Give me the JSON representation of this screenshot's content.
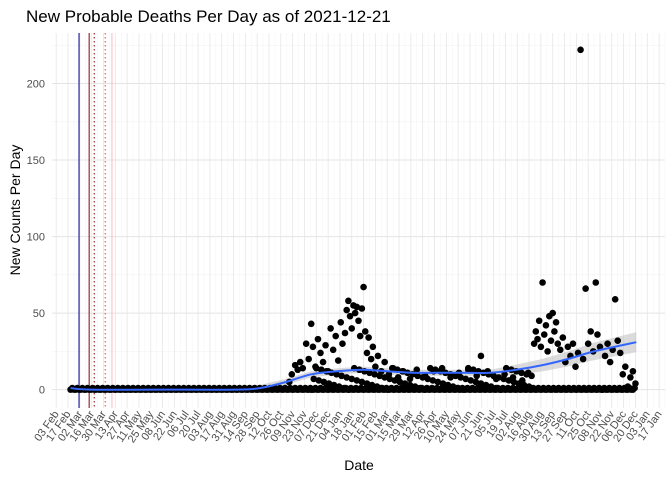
{
  "chart_data": {
    "type": "scatter",
    "title": "New Probable Deaths Per Day as of 2021-12-21",
    "xlabel": "Date",
    "ylabel": "New Counts Per Day",
    "x_type": "date",
    "xlim": [
      "2020-01-29",
      "2022-01-24"
    ],
    "ylim": [
      -12,
      233
    ],
    "y_ticks": [
      0,
      50,
      100,
      150,
      200
    ],
    "grid": true,
    "theme": "minimal",
    "points_color": "#000000",
    "trend_color": "#3366ff",
    "trend_band_color": "#bdbdbd",
    "vlines": [
      {
        "date": "2020-03-01",
        "color": "#00008b",
        "style": "solid"
      },
      {
        "date": "2020-03-13",
        "color": "#8b0000",
        "style": "solid"
      },
      {
        "date": "2020-03-19",
        "color": "#8b0000",
        "style": "dotted"
      },
      {
        "date": "2020-04-01",
        "color": "#ff3333",
        "style": "dotted"
      },
      {
        "date": "2020-04-09",
        "color": "#ffb6c1",
        "style": "solid"
      }
    ],
    "trend": [
      {
        "date": "2020-02-20",
        "value": 1
      },
      {
        "date": "2020-03-15",
        "value": 0
      },
      {
        "date": "2020-06-01",
        "value": 0
      },
      {
        "date": "2020-09-01",
        "value": 0
      },
      {
        "date": "2020-10-01",
        "value": 1
      },
      {
        "date": "2020-11-01",
        "value": 5
      },
      {
        "date": "2020-12-01",
        "value": 10
      },
      {
        "date": "2021-01-01",
        "value": 12
      },
      {
        "date": "2021-02-01",
        "value": 13
      },
      {
        "date": "2021-03-01",
        "value": 12
      },
      {
        "date": "2021-04-01",
        "value": 11
      },
      {
        "date": "2021-05-01",
        "value": 11
      },
      {
        "date": "2021-06-01",
        "value": 11
      },
      {
        "date": "2021-07-01",
        "value": 11
      },
      {
        "date": "2021-08-01",
        "value": 13
      },
      {
        "date": "2021-09-01",
        "value": 16
      },
      {
        "date": "2021-10-01",
        "value": 20
      },
      {
        "date": "2021-11-01",
        "value": 25
      },
      {
        "date": "2021-12-21",
        "value": 31
      }
    ],
    "points": [
      {
        "date": "2020-02-20",
        "value": 0
      },
      {
        "date": "2020-11-05",
        "value": 5
      },
      {
        "date": "2020-11-08",
        "value": 10
      },
      {
        "date": "2020-11-12",
        "value": 16
      },
      {
        "date": "2020-11-15",
        "value": 13
      },
      {
        "date": "2020-11-18",
        "value": 18
      },
      {
        "date": "2020-11-21",
        "value": 14
      },
      {
        "date": "2020-11-25",
        "value": 30
      },
      {
        "date": "2020-11-28",
        "value": 20
      },
      {
        "date": "2020-12-01",
        "value": 43
      },
      {
        "date": "2020-12-03",
        "value": 28
      },
      {
        "date": "2020-12-06",
        "value": 15
      },
      {
        "date": "2020-12-09",
        "value": 33
      },
      {
        "date": "2020-12-12",
        "value": 24
      },
      {
        "date": "2020-12-15",
        "value": 18
      },
      {
        "date": "2020-12-18",
        "value": 29
      },
      {
        "date": "2020-12-21",
        "value": 12
      },
      {
        "date": "2020-12-24",
        "value": 40
      },
      {
        "date": "2020-12-27",
        "value": 26
      },
      {
        "date": "2020-12-30",
        "value": 35
      },
      {
        "date": "2021-01-02",
        "value": 19
      },
      {
        "date": "2021-01-05",
        "value": 44
      },
      {
        "date": "2021-01-07",
        "value": 30
      },
      {
        "date": "2021-01-10",
        "value": 37
      },
      {
        "date": "2021-01-12",
        "value": 52
      },
      {
        "date": "2021-01-14",
        "value": 58
      },
      {
        "date": "2021-01-16",
        "value": 48
      },
      {
        "date": "2021-01-18",
        "value": 40
      },
      {
        "date": "2021-01-20",
        "value": 55
      },
      {
        "date": "2021-01-22",
        "value": 50
      },
      {
        "date": "2021-01-24",
        "value": 54
      },
      {
        "date": "2021-01-26",
        "value": 45
      },
      {
        "date": "2021-01-28",
        "value": 35
      },
      {
        "date": "2021-01-30",
        "value": 53
      },
      {
        "date": "2021-02-01",
        "value": 67
      },
      {
        "date": "2021-02-03",
        "value": 38
      },
      {
        "date": "2021-02-05",
        "value": 24
      },
      {
        "date": "2021-02-07",
        "value": 34
      },
      {
        "date": "2021-02-10",
        "value": 20
      },
      {
        "date": "2021-02-12",
        "value": 28
      },
      {
        "date": "2021-02-15",
        "value": 15
      },
      {
        "date": "2021-02-18",
        "value": 22
      },
      {
        "date": "2021-02-22",
        "value": 12
      },
      {
        "date": "2021-02-26",
        "value": 18
      },
      {
        "date": "2021-03-03",
        "value": 10
      },
      {
        "date": "2021-03-08",
        "value": 14
      },
      {
        "date": "2021-03-14",
        "value": 8
      },
      {
        "date": "2021-03-20",
        "value": 12
      },
      {
        "date": "2021-03-28",
        "value": 7
      },
      {
        "date": "2021-04-05",
        "value": 13
      },
      {
        "date": "2021-04-15",
        "value": 9
      },
      {
        "date": "2021-04-25",
        "value": 12
      },
      {
        "date": "2021-05-05",
        "value": 14
      },
      {
        "date": "2021-05-15",
        "value": 8
      },
      {
        "date": "2021-05-25",
        "value": 11
      },
      {
        "date": "2021-06-05",
        "value": 13
      },
      {
        "date": "2021-06-15",
        "value": 9
      },
      {
        "date": "2021-06-20",
        "value": 22
      },
      {
        "date": "2021-06-28",
        "value": 12
      },
      {
        "date": "2021-07-08",
        "value": 7
      },
      {
        "date": "2021-07-18",
        "value": 10
      },
      {
        "date": "2021-07-28",
        "value": 8
      },
      {
        "date": "2021-08-08",
        "value": 6
      },
      {
        "date": "2021-08-15",
        "value": 11
      },
      {
        "date": "2021-08-22",
        "value": 30
      },
      {
        "date": "2021-08-24",
        "value": 38
      },
      {
        "date": "2021-08-26",
        "value": 33
      },
      {
        "date": "2021-08-28",
        "value": 45
      },
      {
        "date": "2021-08-30",
        "value": 28
      },
      {
        "date": "2021-09-01",
        "value": 70
      },
      {
        "date": "2021-09-03",
        "value": 36
      },
      {
        "date": "2021-09-05",
        "value": 42
      },
      {
        "date": "2021-09-07",
        "value": 25
      },
      {
        "date": "2021-09-09",
        "value": 48
      },
      {
        "date": "2021-09-11",
        "value": 32
      },
      {
        "date": "2021-09-13",
        "value": 50
      },
      {
        "date": "2021-09-15",
        "value": 38
      },
      {
        "date": "2021-09-17",
        "value": 44
      },
      {
        "date": "2021-09-19",
        "value": 30
      },
      {
        "date": "2021-09-22",
        "value": 26
      },
      {
        "date": "2021-09-25",
        "value": 34
      },
      {
        "date": "2021-09-28",
        "value": 18
      },
      {
        "date": "2021-10-01",
        "value": 28
      },
      {
        "date": "2021-10-04",
        "value": 22
      },
      {
        "date": "2021-10-07",
        "value": 30
      },
      {
        "date": "2021-10-10",
        "value": 15
      },
      {
        "date": "2021-10-13",
        "value": 24
      },
      {
        "date": "2021-10-16",
        "value": 222
      },
      {
        "date": "2021-10-19",
        "value": 20
      },
      {
        "date": "2021-10-22",
        "value": 66
      },
      {
        "date": "2021-10-25",
        "value": 30
      },
      {
        "date": "2021-10-28",
        "value": 38
      },
      {
        "date": "2021-10-31",
        "value": 25
      },
      {
        "date": "2021-11-03",
        "value": 70
      },
      {
        "date": "2021-11-05",
        "value": 36
      },
      {
        "date": "2021-11-08",
        "value": 28
      },
      {
        "date": "2021-11-11",
        "value": 0
      },
      {
        "date": "2021-11-14",
        "value": 22
      },
      {
        "date": "2021-11-17",
        "value": 30
      },
      {
        "date": "2021-11-20",
        "value": 18
      },
      {
        "date": "2021-11-23",
        "value": 26
      },
      {
        "date": "2021-11-26",
        "value": 59
      },
      {
        "date": "2021-11-29",
        "value": 32
      },
      {
        "date": "2021-12-02",
        "value": 24
      },
      {
        "date": "2021-12-05",
        "value": 10
      },
      {
        "date": "2021-12-08",
        "value": 15
      },
      {
        "date": "2021-12-11",
        "value": 2
      },
      {
        "date": "2021-12-14",
        "value": 8
      },
      {
        "date": "2021-12-17",
        "value": 12
      },
      {
        "date": "2021-12-20",
        "value": 4
      }
    ],
    "baseline_points": {
      "start": "2020-02-22",
      "end": "2021-12-20",
      "step_days": 2,
      "low": 0,
      "high": 1
    },
    "band_points": {
      "start": "2020-12-01",
      "end": "2021-08-20",
      "step_days": 3,
      "low": 0,
      "high": 14
    },
    "x_tick_labels": [
      "03 Feb",
      "17 Feb",
      "02 Mar",
      "16 Mar",
      "30 Mar",
      "13 Apr",
      "27 Apr",
      "11 May",
      "25 May",
      "08 Jun",
      "22 Jun",
      "06 Jul",
      "20 Jul",
      "03 Aug",
      "17 Aug",
      "31 Aug",
      "14 Sep",
      "28 Sep",
      "12 Oct",
      "26 Oct",
      "09 Nov",
      "23 Nov",
      "07 Dec",
      "21 Dec",
      "04 Jan",
      "18 Jan",
      "01 Feb",
      "15 Feb",
      "01 Mar",
      "15 Mar",
      "29 Mar",
      "12 Apr",
      "26 Apr",
      "10 May",
      "24 May",
      "07 Jun",
      "21 Jun",
      "05 Jul",
      "19 Jul",
      "02 Aug",
      "16 Aug",
      "30 Aug",
      "13 Sep",
      "27 Sep",
      "11 Oct",
      "25 Oct",
      "08 Nov",
      "22 Nov",
      "06 Dec",
      "20 Dec",
      "03 Jan",
      "17 Jan"
    ]
  }
}
